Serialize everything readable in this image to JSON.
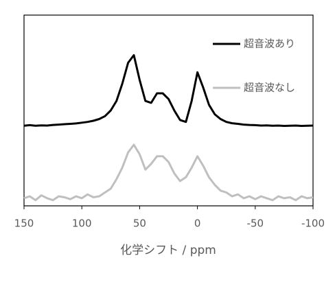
{
  "chart_data": {
    "type": "line",
    "x_label": "化学シフト / ppm",
    "x": [
      150,
      145,
      140,
      135,
      130,
      125,
      120,
      115,
      110,
      105,
      100,
      95,
      90,
      85,
      80,
      75,
      70,
      65,
      60,
      55,
      50,
      45,
      40,
      35,
      30,
      25,
      20,
      15,
      10,
      5,
      0,
      -5,
      -10,
      -15,
      -20,
      -25,
      -30,
      -35,
      -40,
      -45,
      -50,
      -55,
      -60,
      -65,
      -70,
      -75,
      -80,
      -85,
      -90,
      -95,
      -100
    ],
    "series": [
      {
        "name": "超音波あり",
        "color": "#000000",
        "values": [
          42,
          42.3,
          42,
          42.2,
          42.1,
          42.4,
          42.6,
          42.8,
          43,
          43.2,
          43.6,
          44,
          44.6,
          45.5,
          47,
          50,
          55,
          64,
          75,
          79,
          66,
          55,
          54,
          59,
          59,
          56,
          50,
          45,
          44,
          55,
          70,
          62,
          53,
          48,
          45.5,
          44,
          43.3,
          43,
          42.6,
          42.4,
          42.3,
          42.1,
          42.2,
          42,
          42.1,
          41.9,
          42,
          42.1,
          41.9,
          42,
          42.1
        ]
      },
      {
        "name": "超音波なし",
        "color": "#bfbfbf",
        "values": [
          4,
          5,
          3,
          5.5,
          4,
          3,
          5,
          4.5,
          3.5,
          5,
          4,
          6,
          4.5,
          5,
          7,
          9,
          14,
          20,
          28,
          32,
          27,
          19,
          22,
          26,
          26,
          23,
          17,
          13,
          15,
          20,
          26,
          21,
          15,
          11,
          8,
          7,
          5,
          6,
          4,
          5,
          3.5,
          5,
          4,
          3,
          5,
          4,
          4.5,
          3,
          5,
          4,
          4.5
        ]
      }
    ],
    "xlim": [
      150,
      -100
    ],
    "xticks": [
      150,
      100,
      50,
      0,
      -50,
      -100
    ],
    "ylim": [
      0,
      100
    ],
    "legend": "upper right"
  }
}
